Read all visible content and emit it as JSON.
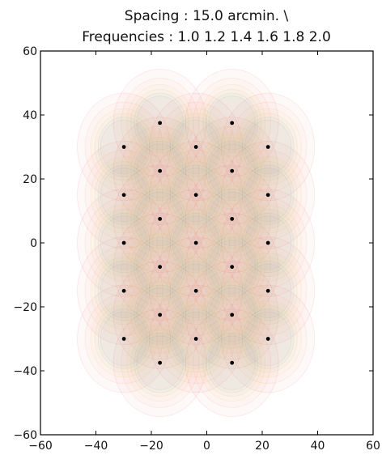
{
  "chart_data": {
    "type": "scatter",
    "title_lines": [
      "Spacing : 15.0 arcmin. \\",
      "Frequencies : 1.0 1.2 1.4 1.6 1.8 2.0"
    ],
    "xlabel": "",
    "ylabel": "",
    "xlim": [
      -60,
      60
    ],
    "ylim": [
      -60,
      60
    ],
    "xticks": [
      -60,
      -40,
      -20,
      0,
      20,
      40,
      60
    ],
    "yticks": [
      -60,
      -40,
      -20,
      0,
      20,
      40,
      60
    ],
    "xtick_labels": [
      "−60",
      "−40",
      "−20",
      "0",
      "20",
      "40",
      "60"
    ],
    "ytick_labels": [
      "−60",
      "−40",
      "−20",
      "0",
      "20",
      "40",
      "60"
    ],
    "grid": false,
    "legend": "none",
    "beam_colors": [
      "#f07a7a",
      "#f4a070",
      "#e8c062",
      "#b7c878",
      "#7fb89e",
      "#8fa8c8"
    ],
    "beam_radii": [
      16.8,
      14.0,
      12.0,
      10.5,
      9.3,
      8.4
    ],
    "beam_opacity": 0.045,
    "point_color": "#000000",
    "points": [
      {
        "x": -16.9,
        "y": 37.5
      },
      {
        "x": 9.1,
        "y": 37.5
      },
      {
        "x": -29.9,
        "y": 30.0
      },
      {
        "x": -3.9,
        "y": 30.0
      },
      {
        "x": 22.1,
        "y": 30.0
      },
      {
        "x": -16.9,
        "y": 22.5
      },
      {
        "x": 9.1,
        "y": 22.5
      },
      {
        "x": -29.9,
        "y": 15.0
      },
      {
        "x": -3.9,
        "y": 15.0
      },
      {
        "x": 22.1,
        "y": 15.0
      },
      {
        "x": -16.9,
        "y": 7.5
      },
      {
        "x": 9.1,
        "y": 7.5
      },
      {
        "x": -29.9,
        "y": 0.0
      },
      {
        "x": -3.9,
        "y": 0.0
      },
      {
        "x": 22.1,
        "y": 0.0
      },
      {
        "x": -16.9,
        "y": -7.5
      },
      {
        "x": 9.1,
        "y": -7.5
      },
      {
        "x": -29.9,
        "y": -15.0
      },
      {
        "x": -3.9,
        "y": -15.0
      },
      {
        "x": 22.1,
        "y": -15.0
      },
      {
        "x": -16.9,
        "y": -22.5
      },
      {
        "x": 9.1,
        "y": -22.5
      },
      {
        "x": -29.9,
        "y": -30.0
      },
      {
        "x": -3.9,
        "y": -30.0
      },
      {
        "x": 22.1,
        "y": -30.0
      },
      {
        "x": -16.9,
        "y": -37.5
      },
      {
        "x": 9.1,
        "y": -37.5
      }
    ]
  }
}
